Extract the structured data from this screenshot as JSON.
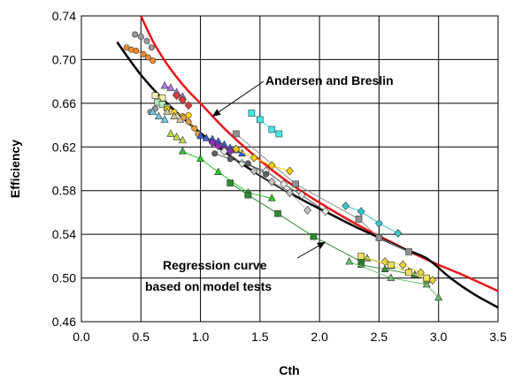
{
  "chart_data": {
    "type": "scatter",
    "xlabel": "Cth",
    "ylabel": "Efficiency",
    "xlim": [
      0.0,
      3.5
    ],
    "ylim": [
      0.46,
      0.74
    ],
    "x_ticks": [
      "0.0",
      "0.5",
      "1.0",
      "1.5",
      "2.0",
      "2.5",
      "3.0",
      "3.5"
    ],
    "y_ticks": [
      "0.46",
      "0.50",
      "0.54",
      "0.58",
      "0.62",
      "0.66",
      "0.70",
      "0.74"
    ],
    "grid": true,
    "annotations": [
      {
        "text": "Andersen and Breslin",
        "target": [
          1.1,
          0.648
        ]
      },
      {
        "text": "Regression curve",
        "target": [
          2.05,
          0.533
        ]
      },
      {
        "text": "based on model tests",
        "target": null
      }
    ],
    "curves": [
      {
        "color": "#e8141a",
        "x": [
          0.5,
          0.6,
          0.7,
          0.8,
          0.9,
          1.0,
          1.2,
          1.4,
          1.6,
          1.8,
          2.0,
          2.2,
          2.4,
          2.6,
          2.8,
          3.0,
          3.2,
          3.5
        ],
        "y": [
          0.74,
          0.717,
          0.699,
          0.684,
          0.671,
          0.66,
          0.637,
          0.617,
          0.599,
          0.583,
          0.569,
          0.556,
          0.544,
          0.533,
          0.522,
          0.512,
          0.503,
          0.488
        ]
      },
      {
        "color": "#000000",
        "x": [
          0.3,
          0.5,
          0.7,
          0.9,
          1.1,
          1.3,
          1.5,
          1.7,
          1.9,
          2.1,
          2.3,
          2.5,
          2.7,
          2.9,
          3.1,
          3.3,
          3.5
        ],
        "y": [
          0.716,
          0.686,
          0.662,
          0.642,
          0.624,
          0.608,
          0.594,
          0.581,
          0.569,
          0.558,
          0.547,
          0.537,
          0.527,
          0.518,
          0.5,
          0.485,
          0.473
        ]
      }
    ],
    "series": [
      {
        "color": "#f28c28",
        "shape": "circle",
        "x": [
          0.38,
          0.42,
          0.46,
          0.52,
          0.56,
          0.6
        ],
        "y": [
          0.711,
          0.709,
          0.708,
          0.705,
          0.702,
          0.699
        ]
      },
      {
        "color": "#9a9a9a",
        "shape": "circle",
        "x": [
          0.45,
          0.5,
          0.55,
          0.59
        ],
        "y": [
          0.723,
          0.721,
          0.717,
          0.711
        ]
      },
      {
        "color": "#9a9a9a",
        "shape": "circle",
        "x": [
          0.58,
          0.62
        ],
        "y": [
          0.652,
          0.655
        ]
      },
      {
        "color": "#b07ae6",
        "shape": "triangle",
        "x": [
          0.7,
          0.75,
          0.8,
          0.85
        ],
        "y": [
          0.676,
          0.674,
          0.67,
          0.666
        ]
      },
      {
        "color": "#e23c3c",
        "shape": "diamond",
        "x": [
          0.8,
          0.85,
          0.9
        ],
        "y": [
          0.667,
          0.663,
          0.658
        ]
      },
      {
        "color": "#f0f0b0",
        "shape": "square",
        "x": [
          0.62,
          0.68
        ],
        "y": [
          0.667,
          0.665
        ]
      },
      {
        "color": "#b6e6b6",
        "shape": "square",
        "x": [
          0.64,
          0.68,
          0.72
        ],
        "y": [
          0.661,
          0.659,
          0.656
        ]
      },
      {
        "color": "#ffd700",
        "shape": "circle",
        "x": [
          0.72,
          0.78,
          0.85,
          0.9
        ],
        "y": [
          0.655,
          0.652,
          0.648,
          0.649
        ]
      },
      {
        "color": "#d4c79b",
        "shape": "triangle",
        "x": [
          0.72,
          0.78,
          0.83
        ],
        "y": [
          0.652,
          0.648,
          0.645
        ]
      },
      {
        "color": "#e6a040",
        "shape": "circle",
        "x": [
          0.86,
          0.9,
          0.95,
          0.98
        ],
        "y": [
          0.647,
          0.643,
          0.637,
          0.632
        ]
      },
      {
        "color": "#3a5fd8",
        "shape": "triangle",
        "x": [
          1.0,
          1.05,
          1.1,
          1.15,
          1.2,
          1.25,
          1.3,
          1.35
        ],
        "y": [
          0.63,
          0.628,
          0.627,
          0.625,
          0.622,
          0.619,
          0.617,
          0.614
        ]
      },
      {
        "color": "#9c2ab8",
        "shape": "diamond",
        "x": [
          1.1,
          1.15,
          1.2,
          1.25
        ],
        "y": [
          0.624,
          0.621,
          0.618,
          0.616
        ]
      },
      {
        "color": "#b8e040",
        "shape": "triangle",
        "x": [
          0.75,
          0.8,
          0.85
        ],
        "y": [
          0.632,
          0.629,
          0.626
        ]
      },
      {
        "color": "#70c8e8",
        "shape": "triangle",
        "x": [
          0.6,
          0.65,
          0.7
        ],
        "y": [
          0.652,
          0.648,
          0.645
        ]
      },
      {
        "color": "#909090",
        "shape": "square",
        "x": [
          1.3,
          1.8,
          2.33,
          2.5,
          2.75
        ],
        "y": [
          0.632,
          0.586,
          0.554,
          0.537,
          0.524
        ]
      },
      {
        "color": "#ffd000",
        "shape": "diamond",
        "x": [
          1.3,
          1.45,
          1.6,
          1.75
        ],
        "y": [
          0.618,
          0.61,
          0.603,
          0.598
        ]
      },
      {
        "color": "#e8e8e8",
        "shape": "diamond",
        "x": [
          1.2,
          1.35,
          1.55,
          1.7,
          1.85,
          2.05
        ],
        "y": [
          0.616,
          0.605,
          0.598,
          0.586,
          0.576,
          0.561
        ]
      },
      {
        "color": "#606060",
        "shape": "circle",
        "x": [
          1.12,
          1.25,
          1.4,
          1.55
        ],
        "y": [
          0.614,
          0.609,
          0.605,
          0.595
        ]
      },
      {
        "color": "#c0c0c0",
        "shape": "diamond",
        "x": [
          1.45,
          1.6,
          1.75,
          1.9
        ],
        "y": [
          0.598,
          0.588,
          0.578,
          0.562
        ]
      },
      {
        "color": "#28c828",
        "shape": "triangle",
        "x": [
          0.85,
          1.0,
          1.15,
          1.4,
          1.6
        ],
        "y": [
          0.616,
          0.609,
          0.597,
          0.578,
          0.573
        ]
      },
      {
        "color": "#2d8a2d",
        "shape": "square",
        "x": [
          1.25,
          1.4,
          1.65,
          1.95,
          2.35
        ],
        "y": [
          0.587,
          0.576,
          0.559,
          0.538,
          0.515
        ]
      },
      {
        "color": "#3a8a3a",
        "shape": "triangle",
        "x": [
          2.35,
          2.55,
          2.8
        ],
        "y": [
          0.512,
          0.508,
          0.503
        ]
      },
      {
        "color": "#6cc06c",
        "shape": "triangle",
        "x": [
          2.25,
          2.6,
          2.9,
          3.0
        ],
        "y": [
          0.515,
          0.5,
          0.494,
          0.482
        ]
      },
      {
        "color": "#9aa62a",
        "shape": "triangle",
        "x": [
          2.4,
          2.6,
          2.75,
          2.9
        ],
        "y": [
          0.518,
          0.511,
          0.506,
          0.498
        ]
      },
      {
        "color": "#e8d440",
        "shape": "diamond",
        "x": [
          2.55,
          2.7,
          2.85,
          2.95
        ],
        "y": [
          0.515,
          0.512,
          0.505,
          0.498
        ]
      },
      {
        "color": "#f0e060",
        "shape": "square",
        "x": [
          2.35,
          2.6,
          2.75,
          2.9
        ],
        "y": [
          0.52,
          0.512,
          0.505,
          0.5
        ]
      },
      {
        "color": "#3ac8c8",
        "shape": "diamond",
        "x": [
          2.22,
          2.35,
          2.5,
          2.66
        ],
        "y": [
          0.566,
          0.561,
          0.55,
          0.541
        ]
      },
      {
        "color": "#40e8e8",
        "shape": "square",
        "x": [
          1.43,
          1.5,
          1.6,
          1.66
        ],
        "y": [
          0.651,
          0.645,
          0.636,
          0.632
        ]
      }
    ]
  }
}
